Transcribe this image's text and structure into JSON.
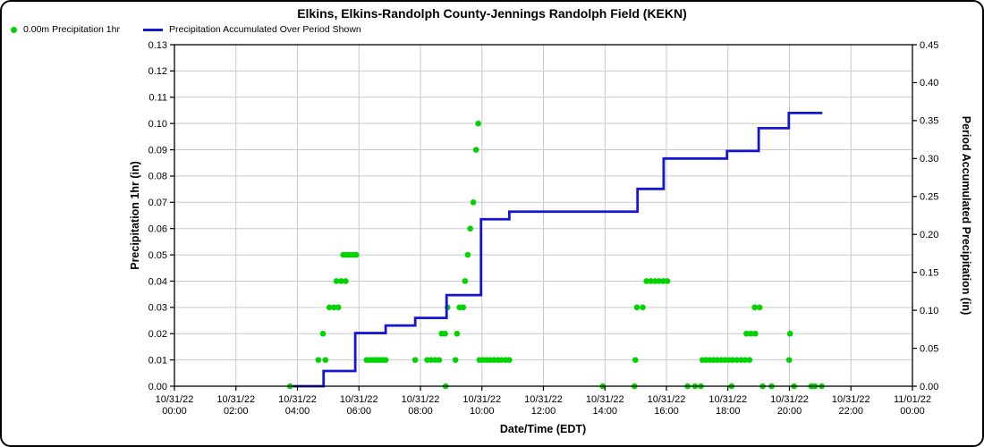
{
  "figure": {
    "background": "#ffffff",
    "border_color": "#000000",
    "grid_color": "#c9c9c9"
  },
  "header": {
    "title": "Elkins, Elkins-Randolph County-Jennings Randolph Field (KEKN)"
  },
  "legend": {
    "items": [
      {
        "label": "0.00m Precipitation 1hr",
        "marker": "dot",
        "color": "#00d400"
      },
      {
        "label": "Precipitation Accumulated Over Period Shown",
        "marker": "line",
        "color": "#1515d3"
      }
    ]
  },
  "axes": {
    "x_label": "Date/Time (EDT)",
    "y_left_label": "Precipitation 1hr (in)",
    "y_right_label": "Period Accumulated Precipitation (in)"
  },
  "chart_data": {
    "type": "line",
    "title": "Elkins, Elkins-Randolph County-Jennings Randolph Field (KEKN)",
    "xlabel": "Date/Time (EDT)",
    "ylabel_left": "Precipitation 1hr (in)",
    "ylabel_right": "Period Accumulated Precipitation (in)",
    "x_axis": {
      "unit": "hours_since_2022-10-31_00:00_EDT",
      "range": [
        0,
        24
      ],
      "tick_step_hours": 2,
      "tick_labels": [
        {
          "date": "10/31/22",
          "time": "00:00"
        },
        {
          "date": "10/31/22",
          "time": "02:00"
        },
        {
          "date": "10/31/22",
          "time": "04:00"
        },
        {
          "date": "10/31/22",
          "time": "06:00"
        },
        {
          "date": "10/31/22",
          "time": "08:00"
        },
        {
          "date": "10/31/22",
          "time": "10:00"
        },
        {
          "date": "10/31/22",
          "time": "12:00"
        },
        {
          "date": "10/31/22",
          "time": "14:00"
        },
        {
          "date": "10/31/22",
          "time": "16:00"
        },
        {
          "date": "10/31/22",
          "time": "18:00"
        },
        {
          "date": "10/31/22",
          "time": "20:00"
        },
        {
          "date": "10/31/22",
          "time": "22:00"
        },
        {
          "date": "11/01/22",
          "time": "00:00"
        }
      ]
    },
    "y_left": {
      "range": [
        0,
        0.13
      ],
      "tick_step": 0.01,
      "grid": true
    },
    "y_right": {
      "range": [
        0,
        0.45
      ],
      "tick_step": 0.05
    },
    "series": [
      {
        "name": "0.00m Precipitation 1hr",
        "type": "scatter",
        "axis": "left",
        "color": "#00d400",
        "points": [
          [
            3.76,
            0.0
          ],
          [
            4.68,
            0.01
          ],
          [
            4.83,
            0.02
          ],
          [
            4.91,
            0.01
          ],
          [
            5.04,
            0.03
          ],
          [
            5.19,
            0.03
          ],
          [
            5.33,
            0.03
          ],
          [
            5.27,
            0.04
          ],
          [
            5.42,
            0.04
          ],
          [
            5.57,
            0.04
          ],
          [
            5.49,
            0.05
          ],
          [
            5.6,
            0.05
          ],
          [
            5.7,
            0.05
          ],
          [
            5.81,
            0.05
          ],
          [
            5.91,
            0.05
          ],
          [
            6.25,
            0.01
          ],
          [
            6.35,
            0.01
          ],
          [
            6.46,
            0.01
          ],
          [
            6.56,
            0.01
          ],
          [
            6.66,
            0.01
          ],
          [
            6.77,
            0.01
          ],
          [
            6.87,
            0.01
          ],
          [
            7.83,
            0.01
          ],
          [
            8.22,
            0.01
          ],
          [
            8.35,
            0.01
          ],
          [
            8.48,
            0.01
          ],
          [
            8.61,
            0.01
          ],
          [
            8.69,
            0.02
          ],
          [
            8.8,
            0.02
          ],
          [
            8.82,
            0.0
          ],
          [
            8.88,
            0.03
          ],
          [
            9.14,
            0.01
          ],
          [
            9.19,
            0.02
          ],
          [
            9.27,
            0.03
          ],
          [
            9.39,
            0.03
          ],
          [
            9.45,
            0.04
          ],
          [
            9.54,
            0.05
          ],
          [
            9.62,
            0.06
          ],
          [
            9.72,
            0.07
          ],
          [
            9.81,
            0.09
          ],
          [
            9.88,
            0.1
          ],
          [
            9.92,
            0.01
          ],
          [
            10.04,
            0.01
          ],
          [
            10.16,
            0.01
          ],
          [
            10.28,
            0.01
          ],
          [
            10.4,
            0.01
          ],
          [
            10.52,
            0.01
          ],
          [
            10.64,
            0.01
          ],
          [
            10.77,
            0.01
          ],
          [
            10.89,
            0.01
          ],
          [
            13.93,
            0.0
          ],
          [
            14.96,
            0.0
          ],
          [
            14.99,
            0.01
          ],
          [
            15.04,
            0.03
          ],
          [
            15.23,
            0.03
          ],
          [
            15.35,
            0.04
          ],
          [
            15.49,
            0.04
          ],
          [
            15.63,
            0.04
          ],
          [
            15.76,
            0.04
          ],
          [
            15.9,
            0.04
          ],
          [
            16.03,
            0.04
          ],
          [
            16.69,
            0.0
          ],
          [
            16.93,
            0.0
          ],
          [
            17.12,
            0.0
          ],
          [
            17.17,
            0.01
          ],
          [
            17.29,
            0.01
          ],
          [
            17.41,
            0.01
          ],
          [
            17.53,
            0.01
          ],
          [
            17.65,
            0.01
          ],
          [
            17.78,
            0.01
          ],
          [
            17.9,
            0.01
          ],
          [
            18.02,
            0.01
          ],
          [
            18.12,
            0.0
          ],
          [
            18.15,
            0.01
          ],
          [
            18.29,
            0.01
          ],
          [
            18.43,
            0.01
          ],
          [
            18.56,
            0.01
          ],
          [
            18.7,
            0.01
          ],
          [
            18.6,
            0.02
          ],
          [
            18.74,
            0.02
          ],
          [
            18.89,
            0.02
          ],
          [
            18.87,
            0.03
          ],
          [
            19.03,
            0.03
          ],
          [
            19.13,
            0.0
          ],
          [
            19.42,
            0.0
          ],
          [
            19.99,
            0.01
          ],
          [
            20.02,
            0.02
          ],
          [
            20.15,
            0.0
          ],
          [
            20.71,
            0.0
          ],
          [
            20.75,
            0.0
          ],
          [
            20.83,
            0.0
          ],
          [
            21.05,
            0.0
          ]
        ]
      },
      {
        "name": "Precipitation Accumulated Over Period Shown",
        "type": "step-line",
        "axis": "right",
        "color": "#1515d3",
        "points": [
          [
            3.86,
            0.0
          ],
          [
            4.85,
            0.0
          ],
          [
            4.85,
            0.02
          ],
          [
            5.88,
            0.02
          ],
          [
            5.88,
            0.07
          ],
          [
            6.87,
            0.07
          ],
          [
            6.87,
            0.08
          ],
          [
            7.83,
            0.08
          ],
          [
            7.83,
            0.09
          ],
          [
            8.85,
            0.09
          ],
          [
            8.85,
            0.12
          ],
          [
            9.97,
            0.12
          ],
          [
            9.97,
            0.22
          ],
          [
            10.89,
            0.22
          ],
          [
            10.89,
            0.23
          ],
          [
            15.06,
            0.23
          ],
          [
            15.06,
            0.26
          ],
          [
            15.91,
            0.26
          ],
          [
            15.91,
            0.3
          ],
          [
            17.97,
            0.3
          ],
          [
            17.97,
            0.31
          ],
          [
            19.0,
            0.31
          ],
          [
            19.0,
            0.34
          ],
          [
            19.98,
            0.34
          ],
          [
            19.98,
            0.36
          ],
          [
            21.07,
            0.36
          ]
        ]
      }
    ]
  }
}
